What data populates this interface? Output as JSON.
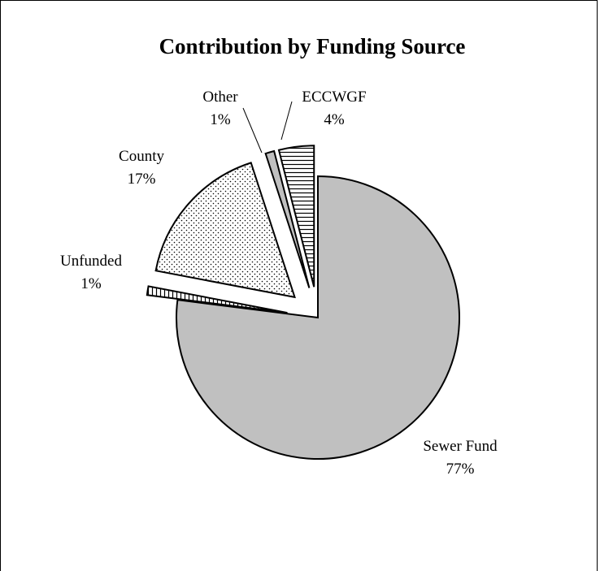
{
  "chart_data": {
    "type": "pie",
    "title": "Contribution by Funding Source",
    "slices": [
      {
        "name": "Sewer Fund",
        "label": "Sewer Fund",
        "value": 77,
        "value_label": "77%",
        "fill": "#c0c0c0",
        "pattern": "solid",
        "exploded": false
      },
      {
        "name": "Unfunded",
        "label": "Unfunded",
        "value": 1,
        "value_label": "1%",
        "fill": "#ffffff",
        "pattern": "vertical-lines",
        "exploded": true
      },
      {
        "name": "County",
        "label": "County",
        "value": 17,
        "value_label": "17%",
        "fill": "#ffffff",
        "pattern": "dots",
        "exploded": true
      },
      {
        "name": "Other",
        "label": "Other",
        "value": 1,
        "value_label": "1%",
        "fill": "#c0c0c0",
        "pattern": "solid",
        "exploded": true
      },
      {
        "name": "ECCWGF",
        "label": "ECCWGF",
        "value": 4,
        "value_label": "4%",
        "fill": "#ffffff",
        "pattern": "horizontal-lines",
        "exploded": true
      }
    ],
    "legend": "none"
  }
}
